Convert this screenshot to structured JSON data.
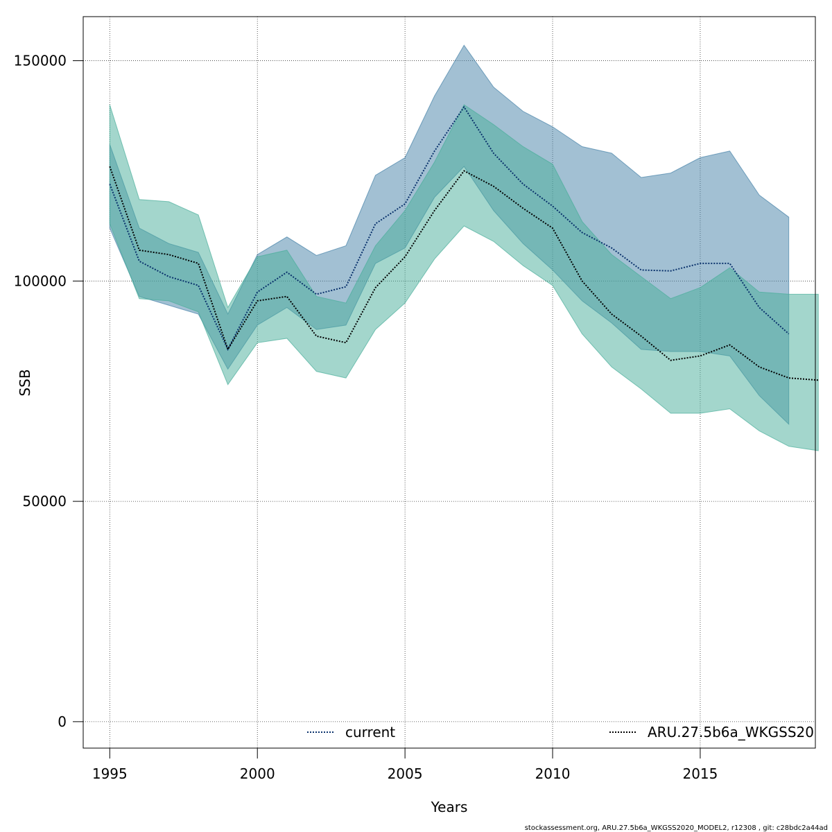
{
  "chart_data": {
    "type": "area",
    "xlabel": "Years",
    "ylabel": "SSB",
    "xlim": [
      1994.1,
      2018.9
    ],
    "ylim": [
      -6000,
      160000
    ],
    "x_ticks": [
      1995,
      2000,
      2005,
      2010,
      2015
    ],
    "y_ticks": [
      0,
      50000,
      100000,
      150000
    ],
    "x_tick_labels": [
      "1995",
      "2000",
      "2005",
      "2010",
      "2015"
    ],
    "y_tick_labels": [
      "0",
      "50000",
      "100000",
      "150000"
    ],
    "grid": true,
    "legend_placement": "bottom",
    "footer": "stockassessment.org, ARU.27.5b6a_WKGSS2020_MODEL2, r12308 , git: c28bdc2a44ad",
    "series": [
      {
        "name": "current",
        "color": "#08306b",
        "band_color": "#4682a8",
        "x": [
          1995,
          1996,
          1997,
          1998,
          1999,
          2000,
          2001,
          2002,
          2003,
          2004,
          2005,
          2006,
          2007,
          2008,
          2009,
          2010,
          2011,
          2012,
          2013,
          2014,
          2015,
          2016,
          2017,
          2018
        ],
        "values": [
          122000,
          104500,
          101000,
          99000,
          84500,
          97500,
          102000,
          97000,
          98700,
          113000,
          117500,
          129500,
          139500,
          129000,
          122000,
          117000,
          111000,
          107500,
          102500,
          102300,
          104000,
          104000,
          94000,
          88000
        ],
        "lower": [
          112000,
          96500,
          94500,
          92500,
          80000,
          90000,
          94000,
          89000,
          90000,
          104000,
          107500,
          119000,
          126000,
          116000,
          108500,
          102500,
          95500,
          90500,
          84500,
          84000,
          84000,
          83000,
          74000,
          67500
        ],
        "upper": [
          131000,
          112000,
          108500,
          106500,
          92500,
          106000,
          110000,
          105800,
          108000,
          124000,
          128000,
          142000,
          153500,
          144000,
          138500,
          135000,
          130500,
          129000,
          123500,
          124500,
          128000,
          129500,
          119500,
          114500
        ]
      },
      {
        "name": "ARU.27.5b6a_WKGSS20",
        "color": "#000000",
        "band_color": "#48ae9a",
        "x": [
          1995,
          1996,
          1997,
          1998,
          1999,
          2000,
          2001,
          2002,
          2003,
          2004,
          2005,
          2006,
          2007,
          2008,
          2009,
          2010,
          2011,
          2012,
          2013,
          2014,
          2015,
          2016,
          2017,
          2018,
          2019
        ],
        "values": [
          126000,
          107000,
          106000,
          104000,
          84500,
          95500,
          96500,
          87500,
          86000,
          98500,
          105500,
          116000,
          125000,
          121500,
          116500,
          112000,
          100000,
          92500,
          87500,
          82000,
          83000,
          85500,
          80500,
          78000,
          77500
        ],
        "lower": [
          113000,
          96000,
          95500,
          93000,
          76500,
          86000,
          87000,
          79500,
          78000,
          89000,
          95000,
          105000,
          112500,
          109000,
          103500,
          99000,
          88000,
          80500,
          75500,
          70000,
          70000,
          71000,
          66000,
          62500,
          61500
        ],
        "upper": [
          140000,
          118500,
          118000,
          115000,
          94000,
          105500,
          107000,
          96500,
          95000,
          108000,
          116000,
          127000,
          140000,
          135500,
          130500,
          126500,
          113500,
          106000,
          101000,
          96000,
          98500,
          103000,
          97500,
          97000,
          97000
        ]
      }
    ]
  }
}
